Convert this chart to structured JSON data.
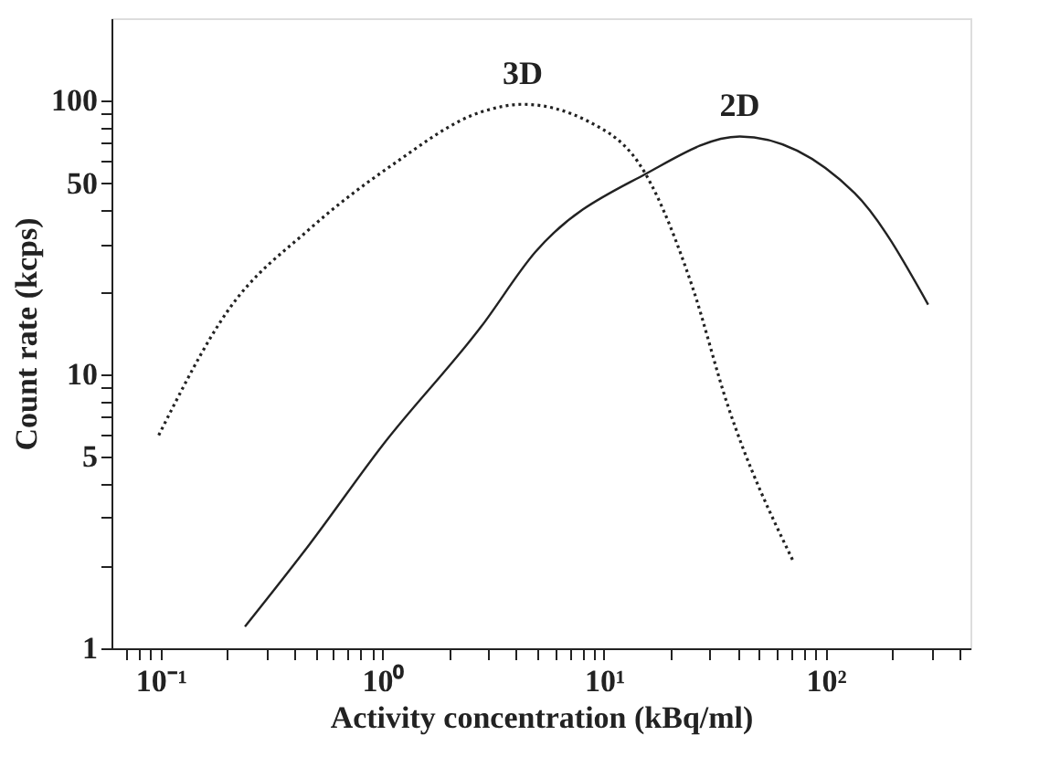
{
  "chart_data": {
    "type": "line",
    "xlabel": "Activity concentration (kBq/ml)",
    "ylabel": "Count rate (kcps)",
    "log": "xy",
    "xlim": [
      0.06,
      450
    ],
    "ylim": [
      1,
      200
    ],
    "xticks": [
      {
        "value": 0.07,
        "label": null
      },
      {
        "value": 0.08,
        "label": null
      },
      {
        "value": 0.09,
        "label": null
      },
      {
        "value": 0.1,
        "label": "10⁻¹"
      },
      {
        "value": 0.2,
        "label": null
      },
      {
        "value": 0.3,
        "label": null
      },
      {
        "value": 0.4,
        "label": null
      },
      {
        "value": 0.5,
        "label": null
      },
      {
        "value": 0.6,
        "label": null
      },
      {
        "value": 0.7,
        "label": null
      },
      {
        "value": 0.8,
        "label": null
      },
      {
        "value": 0.9,
        "label": null
      },
      {
        "value": 1,
        "label": "10⁰"
      },
      {
        "value": 2,
        "label": null
      },
      {
        "value": 3,
        "label": null
      },
      {
        "value": 4,
        "label": null
      },
      {
        "value": 5,
        "label": null
      },
      {
        "value": 6,
        "label": null
      },
      {
        "value": 7,
        "label": null
      },
      {
        "value": 8,
        "label": null
      },
      {
        "value": 9,
        "label": null
      },
      {
        "value": 10,
        "label": "10¹"
      },
      {
        "value": 20,
        "label": null
      },
      {
        "value": 30,
        "label": null
      },
      {
        "value": 40,
        "label": null
      },
      {
        "value": 50,
        "label": null
      },
      {
        "value": 60,
        "label": null
      },
      {
        "value": 70,
        "label": null
      },
      {
        "value": 80,
        "label": null
      },
      {
        "value": 90,
        "label": null
      },
      {
        "value": 100,
        "label": "10²"
      },
      {
        "value": 200,
        "label": null
      },
      {
        "value": 300,
        "label": null
      },
      {
        "value": 400,
        "label": null
      }
    ],
    "yticks": [
      1,
      {
        "value": 2,
        "label": null
      },
      {
        "value": 3,
        "label": null
      },
      {
        "value": 4,
        "label": null
      },
      5,
      {
        "value": 6,
        "label": null
      },
      {
        "value": 7,
        "label": null
      },
      {
        "value": 8,
        "label": null
      },
      {
        "value": 9,
        "label": null
      },
      10,
      {
        "value": 20,
        "label": null
      },
      {
        "value": 30,
        "label": null
      },
      {
        "value": 40,
        "label": null
      },
      50,
      {
        "value": 60,
        "label": null
      },
      {
        "value": 70,
        "label": null
      },
      {
        "value": 80,
        "label": null
      },
      {
        "value": 90,
        "label": null
      },
      100
    ],
    "series": [
      {
        "name": "3D",
        "color": "#222222",
        "line_style": "dotted",
        "x": [
          0.098,
          0.2,
          0.47,
          1.1,
          2.8,
          4.3,
          8.5,
          15.4,
          25,
          36,
          71
        ],
        "values": [
          6.0,
          17,
          34,
          58,
          91,
          97,
          84,
          54,
          21,
          7.8,
          2.1
        ]
      },
      {
        "name": "2D",
        "color": "#222222",
        "line_style": "solid",
        "x": [
          0.24,
          0.47,
          1.0,
          2.8,
          4.9,
          15.4,
          41,
          135,
          290
        ],
        "values": [
          1.2,
          2.4,
          5.5,
          15,
          28,
          54,
          74,
          46,
          18
        ]
      }
    ]
  }
}
